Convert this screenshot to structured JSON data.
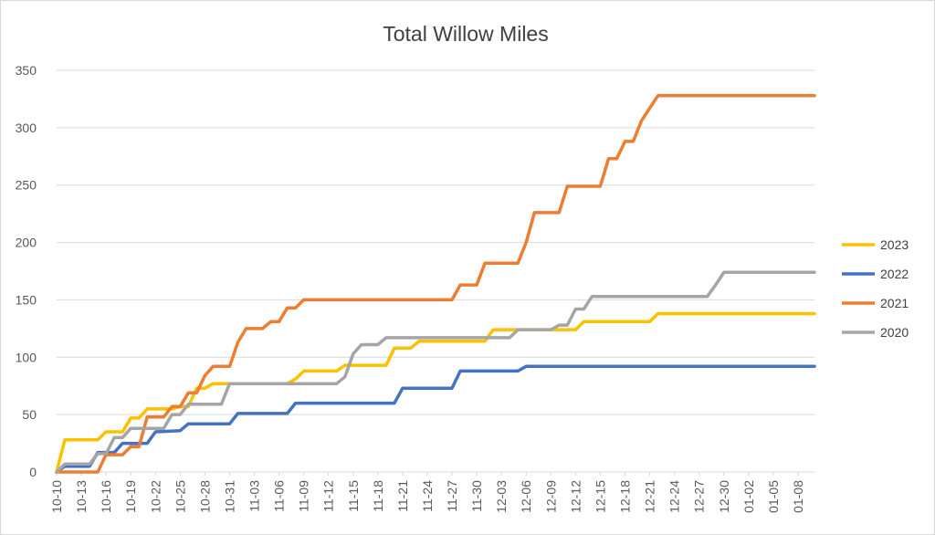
{
  "chart_data": {
    "type": "line",
    "title": "Total Willow Miles",
    "xlabel": "",
    "ylabel": "",
    "ylim": [
      0,
      350
    ],
    "yticks": [
      0,
      50,
      100,
      150,
      200,
      250,
      300,
      350
    ],
    "grid": true,
    "legend_position": "right",
    "start_date": "10-10",
    "x_tick_labels": [
      "10-10",
      "10-13",
      "10-16",
      "10-19",
      "10-22",
      "10-25",
      "10-28",
      "10-31",
      "11-03",
      "11-06",
      "11-09",
      "11-12",
      "11-15",
      "11-18",
      "11-21",
      "11-24",
      "11-27",
      "11-30",
      "12-03",
      "12-06",
      "12-09",
      "12-12",
      "12-15",
      "12-18",
      "12-21",
      "12-24",
      "12-27",
      "12-30",
      "01-02",
      "01-05",
      "01-08"
    ],
    "series": [
      {
        "name": "2023",
        "color": "#FFC000",
        "points": [
          {
            "x": "10-10",
            "y": 0
          },
          {
            "x": "10-11",
            "y": 28
          },
          {
            "x": "10-15",
            "y": 28
          },
          {
            "x": "10-16",
            "y": 35
          },
          {
            "x": "10-18",
            "y": 35
          },
          {
            "x": "10-19",
            "y": 47
          },
          {
            "x": "10-20",
            "y": 47
          },
          {
            "x": "10-21",
            "y": 55
          },
          {
            "x": "10-24",
            "y": 55
          },
          {
            "x": "10-25",
            "y": 57
          },
          {
            "x": "10-26",
            "y": 57
          },
          {
            "x": "10-27",
            "y": 73
          },
          {
            "x": "10-28",
            "y": 73
          },
          {
            "x": "10-29",
            "y": 77
          },
          {
            "x": "11-07",
            "y": 77
          },
          {
            "x": "11-08",
            "y": 81
          },
          {
            "x": "11-09",
            "y": 88
          },
          {
            "x": "11-13",
            "y": 88
          },
          {
            "x": "11-14",
            "y": 93
          },
          {
            "x": "11-19",
            "y": 93
          },
          {
            "x": "11-20",
            "y": 108
          },
          {
            "x": "11-22",
            "y": 108
          },
          {
            "x": "11-23",
            "y": 114
          },
          {
            "x": "12-01",
            "y": 114
          },
          {
            "x": "12-02",
            "y": 124
          },
          {
            "x": "12-12",
            "y": 124
          },
          {
            "x": "12-13",
            "y": 131
          },
          {
            "x": "12-21",
            "y": 131
          },
          {
            "x": "12-22",
            "y": 138
          },
          {
            "x": "01-10",
            "y": 138
          }
        ]
      },
      {
        "name": "2022",
        "color": "#4472C4",
        "points": [
          {
            "x": "10-10",
            "y": 0
          },
          {
            "x": "10-11",
            "y": 5
          },
          {
            "x": "10-14",
            "y": 5
          },
          {
            "x": "10-15",
            "y": 17
          },
          {
            "x": "10-17",
            "y": 17
          },
          {
            "x": "10-18",
            "y": 25
          },
          {
            "x": "10-21",
            "y": 25
          },
          {
            "x": "10-22",
            "y": 35
          },
          {
            "x": "10-25",
            "y": 36
          },
          {
            "x": "10-26",
            "y": 42
          },
          {
            "x": "10-31",
            "y": 42
          },
          {
            "x": "11-01",
            "y": 51
          },
          {
            "x": "11-07",
            "y": 51
          },
          {
            "x": "11-08",
            "y": 60
          },
          {
            "x": "11-20",
            "y": 60
          },
          {
            "x": "11-21",
            "y": 73
          },
          {
            "x": "11-27",
            "y": 73
          },
          {
            "x": "11-28",
            "y": 88
          },
          {
            "x": "12-05",
            "y": 88
          },
          {
            "x": "12-06",
            "y": 92
          },
          {
            "x": "01-10",
            "y": 92
          }
        ]
      },
      {
        "name": "2021",
        "color": "#ED7D31",
        "points": [
          {
            "x": "10-10",
            "y": 0
          },
          {
            "x": "10-15",
            "y": 0
          },
          {
            "x": "10-16",
            "y": 15
          },
          {
            "x": "10-18",
            "y": 15
          },
          {
            "x": "10-19",
            "y": 22
          },
          {
            "x": "10-20",
            "y": 22
          },
          {
            "x": "10-21",
            "y": 48
          },
          {
            "x": "10-23",
            "y": 48
          },
          {
            "x": "10-24",
            "y": 57
          },
          {
            "x": "10-25",
            "y": 57
          },
          {
            "x": "10-26",
            "y": 69
          },
          {
            "x": "10-27",
            "y": 69
          },
          {
            "x": "10-28",
            "y": 84
          },
          {
            "x": "10-29",
            "y": 92
          },
          {
            "x": "10-31",
            "y": 92
          },
          {
            "x": "11-01",
            "y": 113
          },
          {
            "x": "11-02",
            "y": 125
          },
          {
            "x": "11-04",
            "y": 125
          },
          {
            "x": "11-05",
            "y": 131
          },
          {
            "x": "11-06",
            "y": 131
          },
          {
            "x": "11-07",
            "y": 143
          },
          {
            "x": "11-08",
            "y": 143
          },
          {
            "x": "11-09",
            "y": 150
          },
          {
            "x": "11-27",
            "y": 150
          },
          {
            "x": "11-28",
            "y": 163
          },
          {
            "x": "11-30",
            "y": 163
          },
          {
            "x": "12-01",
            "y": 182
          },
          {
            "x": "12-05",
            "y": 182
          },
          {
            "x": "12-06",
            "y": 200
          },
          {
            "x": "12-07",
            "y": 226
          },
          {
            "x": "12-10",
            "y": 226
          },
          {
            "x": "12-11",
            "y": 249
          },
          {
            "x": "12-15",
            "y": 249
          },
          {
            "x": "12-16",
            "y": 273
          },
          {
            "x": "12-17",
            "y": 273
          },
          {
            "x": "12-18",
            "y": 288
          },
          {
            "x": "12-19",
            "y": 288
          },
          {
            "x": "12-20",
            "y": 306
          },
          {
            "x": "12-22",
            "y": 328
          },
          {
            "x": "01-10",
            "y": 328
          }
        ]
      },
      {
        "name": "2020",
        "color": "#A5A5A5",
        "points": [
          {
            "x": "10-10",
            "y": 0
          },
          {
            "x": "10-11",
            "y": 7
          },
          {
            "x": "10-14",
            "y": 7
          },
          {
            "x": "10-15",
            "y": 16
          },
          {
            "x": "10-16",
            "y": 16
          },
          {
            "x": "10-17",
            "y": 30
          },
          {
            "x": "10-18",
            "y": 30
          },
          {
            "x": "10-19",
            "y": 38
          },
          {
            "x": "10-23",
            "y": 38
          },
          {
            "x": "10-24",
            "y": 50
          },
          {
            "x": "10-25",
            "y": 50
          },
          {
            "x": "10-26",
            "y": 59
          },
          {
            "x": "10-30",
            "y": 59
          },
          {
            "x": "10-31",
            "y": 77
          },
          {
            "x": "11-13",
            "y": 77
          },
          {
            "x": "11-14",
            "y": 83
          },
          {
            "x": "11-15",
            "y": 103
          },
          {
            "x": "11-16",
            "y": 111
          },
          {
            "x": "11-18",
            "y": 111
          },
          {
            "x": "11-19",
            "y": 117
          },
          {
            "x": "12-04",
            "y": 117
          },
          {
            "x": "12-05",
            "y": 124
          },
          {
            "x": "12-09",
            "y": 124
          },
          {
            "x": "12-10",
            "y": 128
          },
          {
            "x": "12-11",
            "y": 128
          },
          {
            "x": "12-12",
            "y": 142
          },
          {
            "x": "12-13",
            "y": 142
          },
          {
            "x": "12-14",
            "y": 153
          },
          {
            "x": "12-28",
            "y": 153
          },
          {
            "x": "12-29",
            "y": 163
          },
          {
            "x": "12-30",
            "y": 174
          },
          {
            "x": "01-10",
            "y": 174
          }
        ]
      }
    ]
  }
}
